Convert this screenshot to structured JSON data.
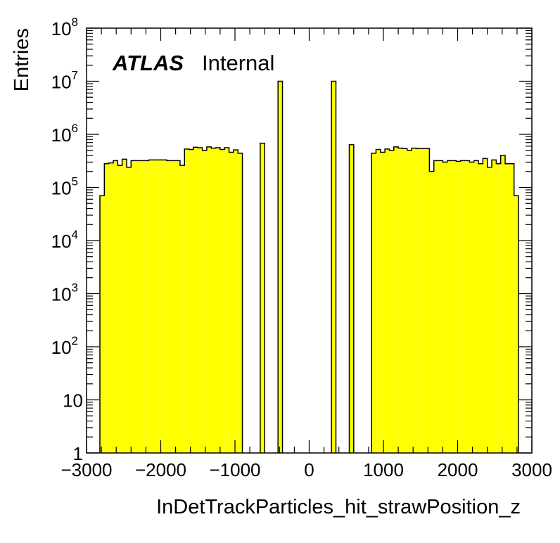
{
  "chart_data": {
    "type": "histogram",
    "ylabel": "Entries",
    "xlabel": "InDetTrackParticles_hit_strawPosition_z",
    "label_main": "ATLAS",
    "label_sub": "Internal",
    "xlim": [
      -3000,
      3000
    ],
    "ylim": [
      1,
      100000000
    ],
    "yscale": "log",
    "fill_color": "#ffff00",
    "line_color": "#000000",
    "x_ticks": [
      {
        "value": -3000,
        "label": "−3000"
      },
      {
        "value": -2000,
        "label": "−2000"
      },
      {
        "value": -1000,
        "label": "−1000"
      },
      {
        "value": 0,
        "label": "0"
      },
      {
        "value": 1000,
        "label": "1000"
      },
      {
        "value": 2000,
        "label": "2000"
      },
      {
        "value": 3000,
        "label": "3000"
      }
    ],
    "y_ticks": [
      {
        "value": 1,
        "base": "1",
        "exp": ""
      },
      {
        "value": 10,
        "base": "10",
        "exp": ""
      },
      {
        "value": 100,
        "base": "10",
        "exp": "2"
      },
      {
        "value": 1000,
        "base": "10",
        "exp": "3"
      },
      {
        "value": 10000,
        "base": "10",
        "exp": "4"
      },
      {
        "value": 100000,
        "base": "10",
        "exp": "5"
      },
      {
        "value": 1000000,
        "base": "10",
        "exp": "6"
      },
      {
        "value": 10000000,
        "base": "10",
        "exp": "7"
      },
      {
        "value": 100000000,
        "base": "10",
        "exp": "8"
      }
    ],
    "bin_edges": [
      -3000,
      2920
    ],
    "bins": [
      {
        "lo": -2820,
        "hi": -2760,
        "value": 70000
      },
      {
        "lo": -2760,
        "hi": -2700,
        "value": 280000
      },
      {
        "lo": -2700,
        "hi": -2640,
        "value": 290000
      },
      {
        "lo": -2640,
        "hi": -2580,
        "value": 320000
      },
      {
        "lo": -2580,
        "hi": -2520,
        "value": 260000
      },
      {
        "lo": -2520,
        "hi": -2460,
        "value": 340000
      },
      {
        "lo": -2460,
        "hi": -2400,
        "value": 240000
      },
      {
        "lo": -2400,
        "hi": -2340,
        "value": 320000
      },
      {
        "lo": -2340,
        "hi": -2280,
        "value": 320000
      },
      {
        "lo": -2280,
        "hi": -2220,
        "value": 320000
      },
      {
        "lo": -2220,
        "hi": -2160,
        "value": 320000
      },
      {
        "lo": -2160,
        "hi": -2100,
        "value": 330000
      },
      {
        "lo": -2100,
        "hi": -2040,
        "value": 330000
      },
      {
        "lo": -2040,
        "hi": -1980,
        "value": 330000
      },
      {
        "lo": -1980,
        "hi": -1920,
        "value": 330000
      },
      {
        "lo": -1920,
        "hi": -1860,
        "value": 320000
      },
      {
        "lo": -1860,
        "hi": -1800,
        "value": 320000
      },
      {
        "lo": -1800,
        "hi": -1740,
        "value": 320000
      },
      {
        "lo": -1740,
        "hi": -1680,
        "value": 260000
      },
      {
        "lo": -1680,
        "hi": -1620,
        "value": 530000
      },
      {
        "lo": -1620,
        "hi": -1560,
        "value": 520000
      },
      {
        "lo": -1560,
        "hi": -1500,
        "value": 570000
      },
      {
        "lo": -1500,
        "hi": -1440,
        "value": 560000
      },
      {
        "lo": -1440,
        "hi": -1380,
        "value": 500000
      },
      {
        "lo": -1380,
        "hi": -1320,
        "value": 580000
      },
      {
        "lo": -1320,
        "hi": -1260,
        "value": 550000
      },
      {
        "lo": -1260,
        "hi": -1200,
        "value": 560000
      },
      {
        "lo": -1200,
        "hi": -1140,
        "value": 520000
      },
      {
        "lo": -1140,
        "hi": -1080,
        "value": 560000
      },
      {
        "lo": -1080,
        "hi": -1020,
        "value": 460000
      },
      {
        "lo": -1020,
        "hi": -960,
        "value": 510000
      },
      {
        "lo": -960,
        "hi": -900,
        "value": 440000
      },
      {
        "lo": -660,
        "hi": -600,
        "value": 680000
      },
      {
        "lo": -420,
        "hi": -360,
        "value": 10000000
      },
      {
        "lo": 300,
        "hi": 360,
        "value": 10000000
      },
      {
        "lo": 540,
        "hi": 600,
        "value": 640000
      },
      {
        "lo": 840,
        "hi": 900,
        "value": 440000
      },
      {
        "lo": 900,
        "hi": 960,
        "value": 520000
      },
      {
        "lo": 960,
        "hi": 1020,
        "value": 460000
      },
      {
        "lo": 1020,
        "hi": 1080,
        "value": 530000
      },
      {
        "lo": 1080,
        "hi": 1140,
        "value": 500000
      },
      {
        "lo": 1140,
        "hi": 1200,
        "value": 580000
      },
      {
        "lo": 1200,
        "hi": 1260,
        "value": 550000
      },
      {
        "lo": 1260,
        "hi": 1320,
        "value": 540000
      },
      {
        "lo": 1320,
        "hi": 1380,
        "value": 500000
      },
      {
        "lo": 1380,
        "hi": 1440,
        "value": 550000
      },
      {
        "lo": 1440,
        "hi": 1500,
        "value": 540000
      },
      {
        "lo": 1500,
        "hi": 1560,
        "value": 540000
      },
      {
        "lo": 1560,
        "hi": 1620,
        "value": 540000
      },
      {
        "lo": 1620,
        "hi": 1680,
        "value": 200000
      },
      {
        "lo": 1680,
        "hi": 1740,
        "value": 320000
      },
      {
        "lo": 1740,
        "hi": 1800,
        "value": 320000
      },
      {
        "lo": 1800,
        "hi": 1860,
        "value": 300000
      },
      {
        "lo": 1860,
        "hi": 1920,
        "value": 320000
      },
      {
        "lo": 1920,
        "hi": 1980,
        "value": 320000
      },
      {
        "lo": 1980,
        "hi": 2040,
        "value": 310000
      },
      {
        "lo": 2040,
        "hi": 2100,
        "value": 320000
      },
      {
        "lo": 2100,
        "hi": 2160,
        "value": 320000
      },
      {
        "lo": 2160,
        "hi": 2220,
        "value": 300000
      },
      {
        "lo": 2220,
        "hi": 2280,
        "value": 320000
      },
      {
        "lo": 2280,
        "hi": 2340,
        "value": 280000
      },
      {
        "lo": 2340,
        "hi": 2400,
        "value": 350000
      },
      {
        "lo": 2400,
        "hi": 2460,
        "value": 240000
      },
      {
        "lo": 2460,
        "hi": 2520,
        "value": 330000
      },
      {
        "lo": 2520,
        "hi": 2580,
        "value": 280000
      },
      {
        "lo": 2580,
        "hi": 2640,
        "value": 400000
      },
      {
        "lo": 2640,
        "hi": 2700,
        "value": 280000
      },
      {
        "lo": 2700,
        "hi": 2760,
        "value": 280000
      },
      {
        "lo": 2760,
        "hi": 2820,
        "value": 70000
      }
    ]
  }
}
